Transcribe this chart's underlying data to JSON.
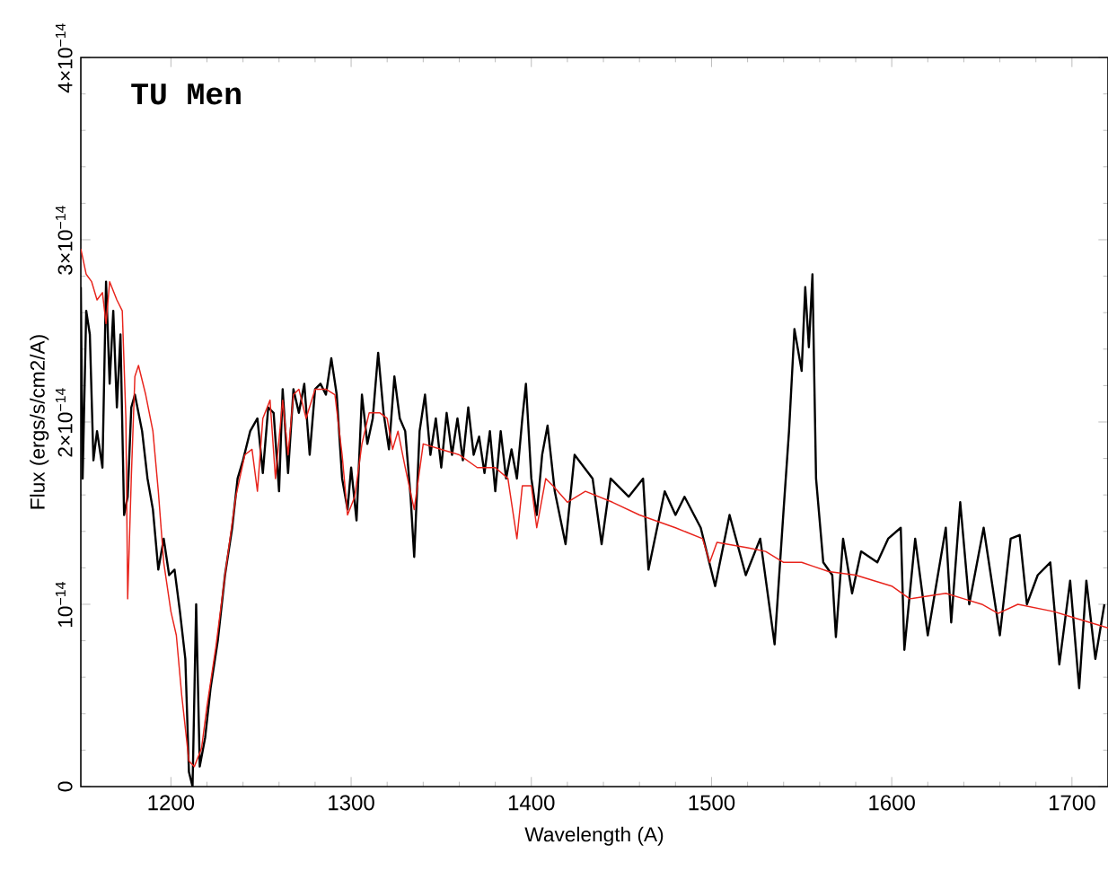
{
  "chart_data": {
    "type": "line",
    "title": "TU Men",
    "xlabel": "Wavelength (A)",
    "ylabel": "Flux (ergs/s/cm2/A)",
    "xlim": [
      1150,
      1720
    ],
    "ylim": [
      0,
      4e-14
    ],
    "xticks": [
      1200,
      1300,
      1400,
      1500,
      1600,
      1700
    ],
    "yticks": [
      0,
      {
        "value": 1e-14,
        "label": "10$^{−14}$"
      },
      {
        "value": 2e-14,
        "label": "2×10$^{−14}$"
      },
      {
        "value": 3e-14,
        "label": "3×10$^{−14}$"
      },
      {
        "value": 4e-14,
        "label": "4×10$^{−14}$"
      }
    ],
    "series": [
      {
        "color": "#000000",
        "x": [
          1150,
          1151,
          1153,
          1155,
          1157,
          1159,
          1162,
          1164,
          1166,
          1168,
          1170,
          1172,
          1174,
          1176,
          1178,
          1180,
          1184,
          1187,
          1190,
          1193,
          1196,
          1199,
          1202,
          1205,
          1208,
          1210,
          1212,
          1214,
          1216,
          1219,
          1222,
          1226,
          1230,
          1234,
          1237,
          1240,
          1244,
          1248,
          1251,
          1254,
          1257,
          1260,
          1262,
          1265,
          1268,
          1271,
          1274,
          1277,
          1280,
          1283,
          1286,
          1289,
          1292,
          1295,
          1298,
          1300,
          1303,
          1306,
          1309,
          1312,
          1315,
          1318,
          1321,
          1324,
          1327,
          1330,
          1333,
          1335,
          1338,
          1341,
          1344,
          1347,
          1350,
          1353,
          1356,
          1359,
          1362,
          1365,
          1368,
          1371,
          1374,
          1377,
          1380,
          1383,
          1386,
          1389,
          1392,
          1395,
          1397,
          1400,
          1403,
          1406,
          1409,
          1413,
          1419,
          1424,
          1434,
          1439,
          1444,
          1454,
          1462,
          1465,
          1474,
          1480,
          1485,
          1494,
          1502,
          1510,
          1519,
          1527,
          1535,
          1540,
          1543,
          1546,
          1550,
          1552,
          1554,
          1556,
          1558,
          1562,
          1567,
          1569,
          1573,
          1578,
          1583,
          1592,
          1598,
          1605,
          1607,
          1613,
          1620,
          1630,
          1633,
          1638,
          1643,
          1651,
          1660,
          1666,
          1671,
          1675,
          1681,
          1688,
          1693,
          1699,
          1704,
          1708,
          1713,
          1718
        ],
        "values": [
          2.74e-14,
          1.69e-14,
          2.61e-14,
          2.48e-14,
          1.79e-14,
          1.95e-14,
          1.75e-14,
          2.77e-14,
          2.21e-14,
          2.61e-14,
          2.08e-14,
          2.48e-14,
          1.49e-14,
          1.59e-14,
          2.08e-14,
          2.15e-14,
          1.95e-14,
          1.69e-14,
          1.52e-14,
          1.19e-14,
          1.36e-14,
          1.16e-14,
          1.19e-14,
          9.6e-15,
          7e-15,
          8e-16,
          0,
          1e-14,
          1.1e-15,
          2.7e-15,
          5.4e-15,
          8e-15,
          1.16e-14,
          1.42e-14,
          1.69e-14,
          1.79e-14,
          1.95e-14,
          2.02e-14,
          1.72e-14,
          2.08e-14,
          2.05e-14,
          1.62e-14,
          2.18e-14,
          1.72e-14,
          2.18e-14,
          2.05e-14,
          2.21e-14,
          1.82e-14,
          2.18e-14,
          2.21e-14,
          2.15e-14,
          2.35e-14,
          2.15e-14,
          1.69e-14,
          1.52e-14,
          1.75e-14,
          1.46e-14,
          2.15e-14,
          1.88e-14,
          2.02e-14,
          2.38e-14,
          2.05e-14,
          1.85e-14,
          2.25e-14,
          2.02e-14,
          1.95e-14,
          1.59e-14,
          1.26e-14,
          1.95e-14,
          2.15e-14,
          1.82e-14,
          2.02e-14,
          1.75e-14,
          2.05e-14,
          1.82e-14,
          2.02e-14,
          1.79e-14,
          2.08e-14,
          1.82e-14,
          1.92e-14,
          1.72e-14,
          1.95e-14,
          1.62e-14,
          1.95e-14,
          1.69e-14,
          1.85e-14,
          1.69e-14,
          2.02e-14,
          2.21e-14,
          1.69e-14,
          1.49e-14,
          1.82e-14,
          1.98e-14,
          1.62e-14,
          1.33e-14,
          1.82e-14,
          1.69e-14,
          1.33e-14,
          1.69e-14,
          1.59e-14,
          1.69e-14,
          1.19e-14,
          1.62e-14,
          1.49e-14,
          1.59e-14,
          1.42e-14,
          1.1e-14,
          1.49e-14,
          1.16e-14,
          1.36e-14,
          7.8e-15,
          1.52e-14,
          1.95e-14,
          2.51e-14,
          2.28e-14,
          2.74e-14,
          2.41e-14,
          2.81e-14,
          1.69e-14,
          1.23e-14,
          1.16e-14,
          8.2e-15,
          1.36e-14,
          1.06e-14,
          1.29e-14,
          1.23e-14,
          1.36e-14,
          1.42e-14,
          7.5e-15,
          1.36e-14,
          8.3e-15,
          1.42e-14,
          9e-15,
          1.56e-14,
          1e-14,
          1.42e-14,
          8.3e-15,
          1.36e-14,
          1.38e-14,
          1e-14,
          1.16e-14,
          1.23e-14,
          6.7e-15,
          1.13e-14,
          5.4e-15,
          1.13e-14,
          7e-15,
          1e-14
        ]
      },
      {
        "color": "#e8241c",
        "x": [
          1150,
          1153,
          1156,
          1159,
          1162,
          1164,
          1166,
          1170,
          1173,
          1175,
          1176,
          1178,
          1180,
          1182,
          1186,
          1190,
          1193,
          1196,
          1200,
          1203,
          1206,
          1210,
          1213,
          1217,
          1220,
          1225,
          1230,
          1236,
          1241,
          1245,
          1248,
          1251,
          1255,
          1258,
          1262,
          1265,
          1268,
          1271,
          1275,
          1280,
          1286,
          1291,
          1295,
          1298,
          1302,
          1306,
          1310,
          1316,
          1320,
          1323,
          1326,
          1330,
          1335,
          1340,
          1350,
          1360,
          1370,
          1380,
          1387,
          1392,
          1395,
          1400,
          1403,
          1408,
          1412,
          1420,
          1430,
          1445,
          1460,
          1480,
          1495,
          1499,
          1503,
          1520,
          1530,
          1540,
          1550,
          1556,
          1565,
          1580,
          1600,
          1610,
          1630,
          1640,
          1650,
          1659,
          1670,
          1690,
          1700,
          1720
        ],
        "values": [
          2.95e-14,
          2.81e-14,
          2.77e-14,
          2.67e-14,
          2.71e-14,
          2.54e-14,
          2.77e-14,
          2.67e-14,
          2.61e-14,
          2.02e-14,
          1.03e-14,
          1.69e-14,
          2.25e-14,
          2.31e-14,
          2.15e-14,
          1.95e-14,
          1.62e-14,
          1.23e-14,
          9.6e-15,
          8.3e-15,
          5e-15,
          1.4e-15,
          1.1e-15,
          2.1e-15,
          4.4e-15,
          7.7e-15,
          1.16e-14,
          1.59e-14,
          1.82e-14,
          1.85e-14,
          1.62e-14,
          2.02e-14,
          2.12e-14,
          1.69e-14,
          2.12e-14,
          1.82e-14,
          2.15e-14,
          2.18e-14,
          2.02e-14,
          2.18e-14,
          2.18e-14,
          2.15e-14,
          1.82e-14,
          1.49e-14,
          1.59e-14,
          1.88e-14,
          2.05e-14,
          2.05e-14,
          2.02e-14,
          1.85e-14,
          1.95e-14,
          1.75e-14,
          1.52e-14,
          1.88e-14,
          1.85e-14,
          1.82e-14,
          1.75e-14,
          1.75e-14,
          1.69e-14,
          1.36e-14,
          1.65e-14,
          1.65e-14,
          1.42e-14,
          1.69e-14,
          1.65e-14,
          1.56e-14,
          1.62e-14,
          1.56e-14,
          1.49e-14,
          1.42e-14,
          1.36e-14,
          1.23e-14,
          1.34e-14,
          1.31e-14,
          1.29e-14,
          1.23e-14,
          1.23e-14,
          1.21e-14,
          1.18e-14,
          1.16e-14,
          1.1e-14,
          1.03e-14,
          1.06e-14,
          1.03e-14,
          1e-14,
          9.5e-15,
          1e-14,
          9.6e-15,
          9.3e-15,
          8.7e-15
        ]
      }
    ]
  }
}
